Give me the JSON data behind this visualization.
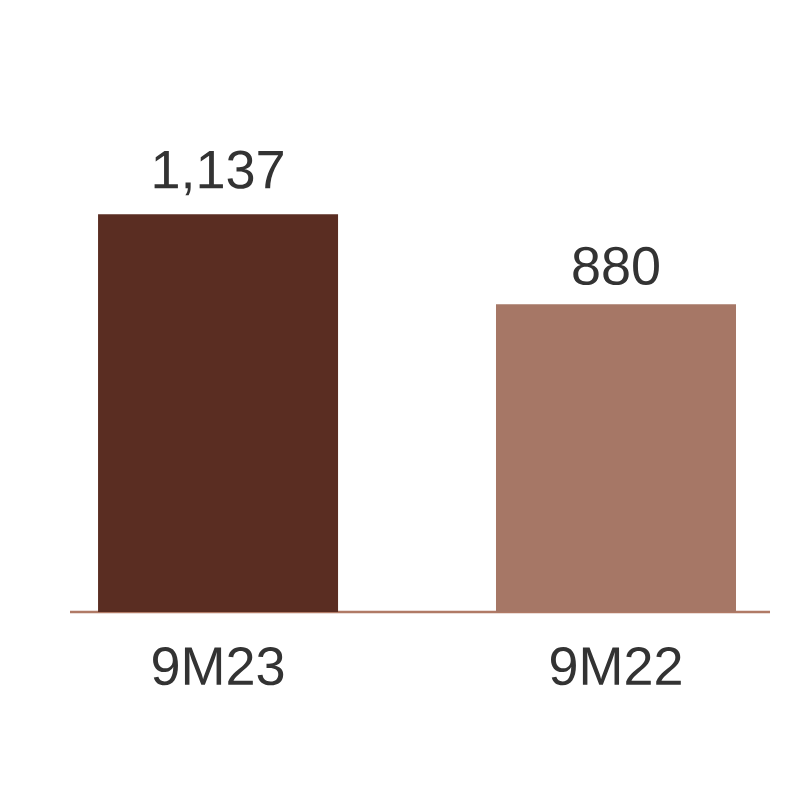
{
  "chart_data": {
    "type": "bar",
    "categories": [
      "9M23",
      "9M22"
    ],
    "values": [
      1137,
      880
    ],
    "value_labels": [
      "1,137",
      "880"
    ],
    "colors": [
      "#5a2d22",
      "#a67766"
    ]
  }
}
